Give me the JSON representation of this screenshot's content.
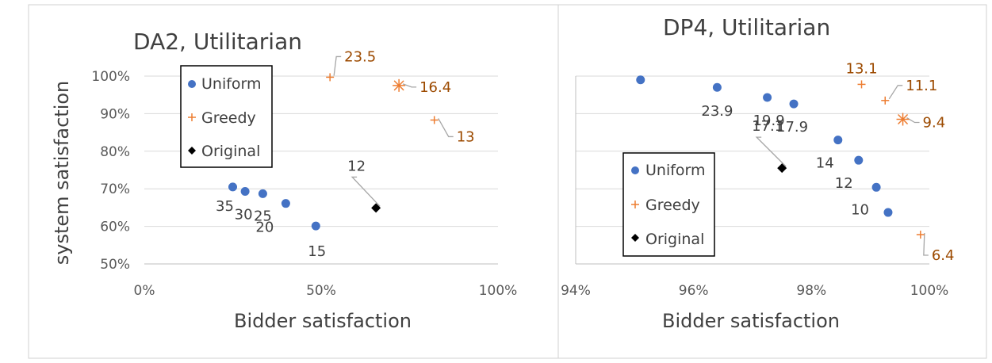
{
  "figure": {
    "ylabel": "system satisfaction",
    "colors": {
      "uniform": "#4472c4",
      "greedy": "#ed7d31",
      "original": "#000000",
      "greedy_label": "#9c4a00"
    }
  },
  "chart_data": [
    {
      "type": "scatter",
      "title": "DA2, Utilitarian",
      "xlabel": "Bidder satisfaction",
      "ylabel": "system satisfaction",
      "xlim": [
        0,
        1
      ],
      "ylim": [
        0.5,
        1.0
      ],
      "xticks": [
        0,
        0.5,
        1.0
      ],
      "xtick_labels": [
        "0%",
        "50%",
        "100%"
      ],
      "yticks": [
        0.5,
        0.6,
        0.7,
        0.8,
        0.9,
        1.0
      ],
      "ytick_labels": [
        "50%",
        "60%",
        "70%",
        "80%",
        "90%",
        "100%"
      ],
      "grid": "horizontal",
      "legend": [
        "Uniform",
        "Greedy",
        "Original"
      ],
      "legend_position": "top-left",
      "series": [
        {
          "name": "Uniform",
          "marker": "circle",
          "points": [
            {
              "x": 0.25,
              "y": 0.705,
              "label": "35"
            },
            {
              "x": 0.285,
              "y": 0.693,
              "label": "30"
            },
            {
              "x": 0.335,
              "y": 0.687,
              "label": "25"
            },
            {
              "x": 0.4,
              "y": 0.661,
              "label": "20"
            },
            {
              "x": 0.485,
              "y": 0.601,
              "label": "15"
            }
          ]
        },
        {
          "name": "Greedy",
          "marker": "plus",
          "points": [
            {
              "x": 0.525,
              "y": 0.997,
              "label": "23.5"
            },
            {
              "x": 0.72,
              "y": 0.975,
              "label": "16.4"
            },
            {
              "x": 0.82,
              "y": 0.883,
              "label": "13"
            }
          ]
        },
        {
          "name": "Original",
          "marker": "diamond",
          "points": [
            {
              "x": 0.655,
              "y": 0.649,
              "label": "12"
            }
          ]
        }
      ]
    },
    {
      "type": "scatter",
      "title": "DP4, Utilitarian",
      "xlabel": "Bidder satisfaction",
      "xlim": [
        0.94,
        1.0
      ],
      "xticks": [
        0.94,
        0.96,
        0.98,
        1.0
      ],
      "xtick_labels": [
        "94%",
        "96%",
        "98%",
        "100%"
      ],
      "grid": "horizontal",
      "legend": [
        "Uniform",
        "Greedy",
        "Original"
      ],
      "legend_position": "bottom-left",
      "series": [
        {
          "name": "Uniform",
          "marker": "circle",
          "points": [
            {
              "x": 0.951,
              "y": 0.99,
              "label": ""
            },
            {
              "x": 0.964,
              "y": 0.97,
              "label": "23.9"
            },
            {
              "x": 0.9725,
              "y": 0.943,
              "label": "19.9"
            },
            {
              "x": 0.977,
              "y": 0.926,
              "label": "17.9"
            },
            {
              "x": 0.9845,
              "y": 0.83,
              "label": "14"
            },
            {
              "x": 0.988,
              "y": 0.776,
              "label": "12"
            },
            {
              "x": 0.991,
              "y": 0.704,
              "label": "10"
            },
            {
              "x": 0.993,
              "y": 0.637,
              "label": ""
            }
          ]
        },
        {
          "name": "Greedy",
          "marker": "plus",
          "points": [
            {
              "x": 0.9885,
              "y": 0.978,
              "label": "13.1"
            },
            {
              "x": 0.9925,
              "y": 0.935,
              "label": "11.1"
            },
            {
              "x": 0.9955,
              "y": 0.885,
              "label": "9.4"
            },
            {
              "x": 0.9985,
              "y": 0.578,
              "label": "6.4"
            }
          ]
        },
        {
          "name": "Original",
          "marker": "diamond",
          "points": [
            {
              "x": 0.975,
              "y": 0.755,
              "label": "17.1"
            }
          ]
        }
      ]
    }
  ]
}
